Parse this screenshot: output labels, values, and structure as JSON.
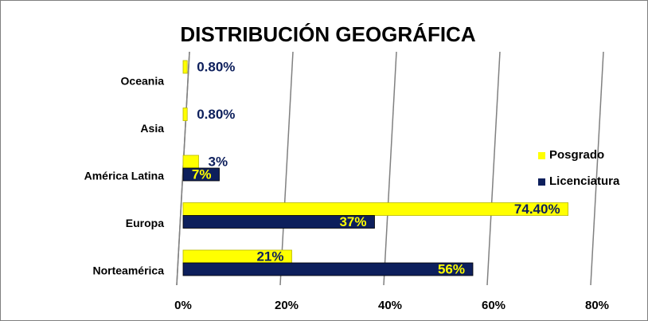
{
  "chart_data": {
    "type": "hbar",
    "title": "DISTRIBUCIÓN GEOGRÁFICA",
    "categories": [
      "Oceania",
      "Asia",
      "América Latina",
      "Europa",
      "Norteamérica"
    ],
    "series": [
      {
        "name": "Posgrado",
        "color": "#ffff00",
        "values": [
          0.8,
          0.8,
          3,
          74.4,
          21
        ],
        "value_labels": [
          "0.80%",
          "0.80%",
          "3%",
          "74.40%",
          "21%"
        ]
      },
      {
        "name": "Licenciatura",
        "color": "#0d1f5c",
        "values": [
          null,
          null,
          7,
          37,
          56
        ],
        "value_labels": [
          null,
          null,
          "7%",
          "37%",
          "56%"
        ]
      }
    ],
    "xlim": [
      0,
      80
    ],
    "xticks": [
      {
        "value": 0,
        "label": "0%"
      },
      {
        "value": 20,
        "label": "20%"
      },
      {
        "value": 40,
        "label": "40%"
      },
      {
        "value": 60,
        "label": "60%"
      },
      {
        "value": 80,
        "label": "80%"
      }
    ],
    "grid": true,
    "legend": "right"
  }
}
